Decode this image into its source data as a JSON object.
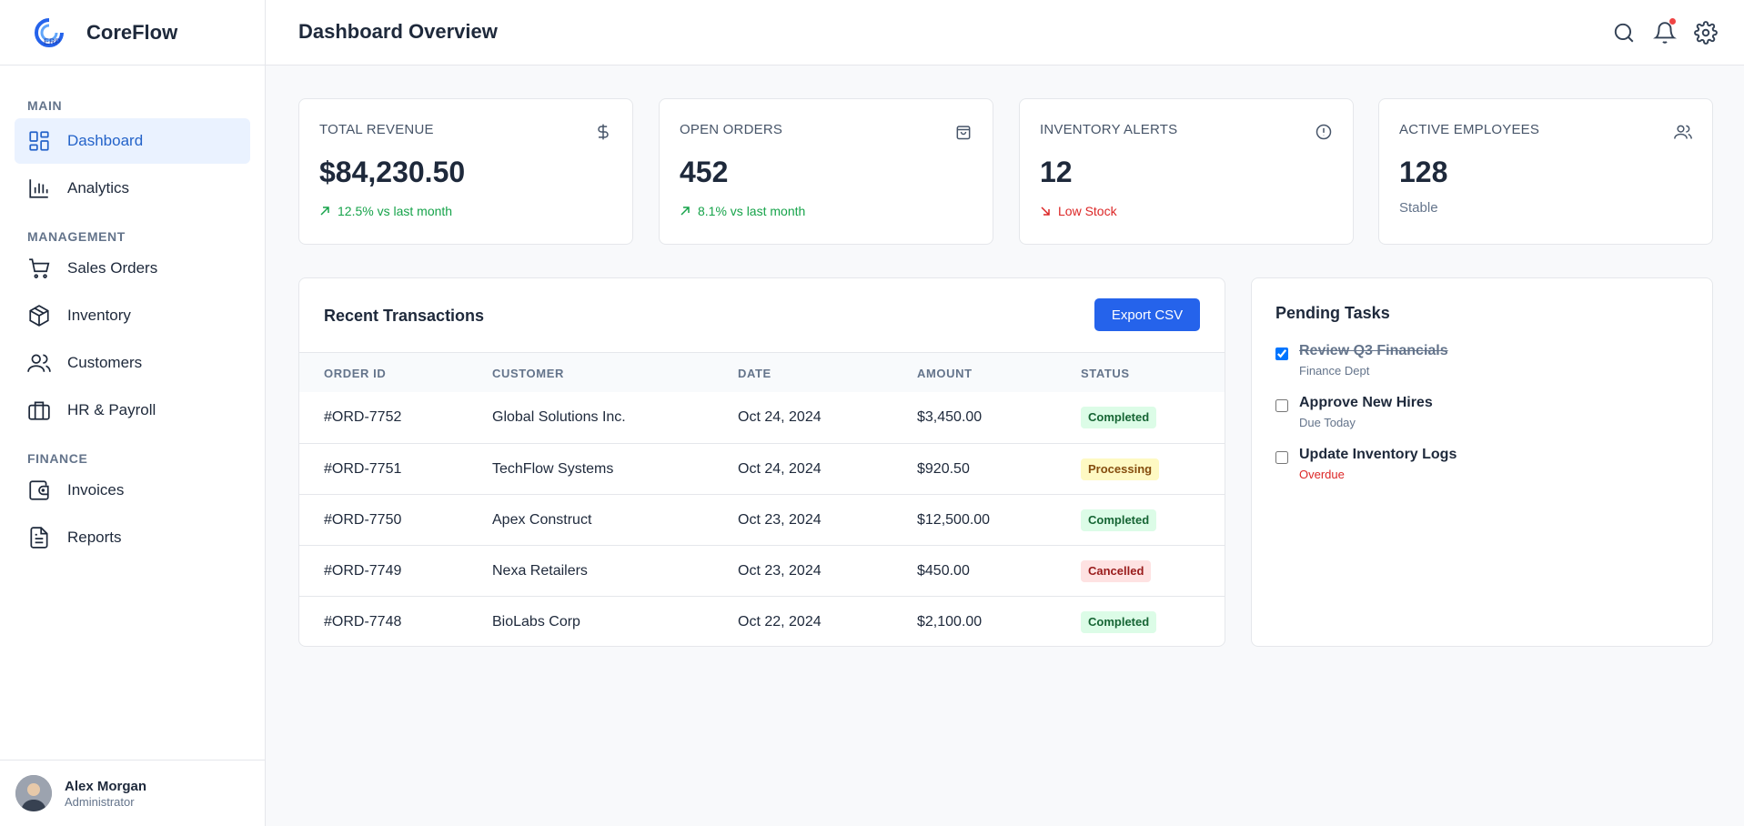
{
  "app": {
    "name": "CoreFlow",
    "logo_text": "ERP"
  },
  "sidebar": {
    "sections": [
      {
        "label": "MAIN",
        "items": [
          {
            "label": "Dashboard",
            "icon": "dashboard-icon"
          },
          {
            "label": "Analytics",
            "icon": "bar-chart-icon"
          }
        ]
      },
      {
        "label": "MANAGEMENT",
        "items": [
          {
            "label": "Sales Orders",
            "icon": "cart-icon"
          },
          {
            "label": "Inventory",
            "icon": "box-icon"
          },
          {
            "label": "Customers",
            "icon": "users-icon"
          },
          {
            "label": "HR & Payroll",
            "icon": "briefcase-icon"
          }
        ]
      },
      {
        "label": "FINANCE",
        "items": [
          {
            "label": "Invoices",
            "icon": "wallet-icon"
          },
          {
            "label": "Reports",
            "icon": "report-icon"
          }
        ]
      }
    ],
    "active_item": "Dashboard"
  },
  "user": {
    "name": "Alex Morgan",
    "role": "Administrator"
  },
  "header": {
    "title": "Dashboard Overview",
    "icons": [
      "search-icon",
      "bell-icon",
      "gear-icon"
    ]
  },
  "stats": [
    {
      "label": "TOTAL REVENUE",
      "value": "$84,230.50",
      "trend": "12.5% vs last month",
      "trend_dir": "up",
      "icon": "dollar-icon"
    },
    {
      "label": "OPEN ORDERS",
      "value": "452",
      "trend": "8.1% vs last month",
      "trend_dir": "up",
      "icon": "shopping-bag-icon"
    },
    {
      "label": "INVENTORY ALERTS",
      "value": "12",
      "trend": "Low Stock",
      "trend_dir": "down",
      "icon": "alert-icon"
    },
    {
      "label": "ACTIVE EMPLOYEES",
      "value": "128",
      "sub": "Stable",
      "icon": "users-icon"
    }
  ],
  "transactions": {
    "title": "Recent Transactions",
    "export_label": "Export CSV",
    "columns": [
      "ORDER ID",
      "CUSTOMER",
      "DATE",
      "AMOUNT",
      "STATUS"
    ],
    "rows": [
      {
        "id": "#ORD-7752",
        "customer": "Global Solutions Inc.",
        "date": "Oct 24, 2024",
        "amount": "$3,450.00",
        "status": "Completed"
      },
      {
        "id": "#ORD-7751",
        "customer": "TechFlow Systems",
        "date": "Oct 24, 2024",
        "amount": "$920.50",
        "status": "Processing"
      },
      {
        "id": "#ORD-7750",
        "customer": "Apex Construct",
        "date": "Oct 23, 2024",
        "amount": "$12,500.00",
        "status": "Completed"
      },
      {
        "id": "#ORD-7749",
        "customer": "Nexa Retailers",
        "date": "Oct 23, 2024",
        "amount": "$450.00",
        "status": "Cancelled"
      },
      {
        "id": "#ORD-7748",
        "customer": "BioLabs Corp",
        "date": "Oct 22, 2024",
        "amount": "$2,100.00",
        "status": "Completed"
      }
    ]
  },
  "tasks": {
    "title": "Pending Tasks",
    "items": [
      {
        "title": "Review Q3 Financials",
        "meta": "Finance Dept",
        "done": true
      },
      {
        "title": "Approve New Hires",
        "meta": "Due Today",
        "done": false
      },
      {
        "title": "Update Inventory Logs",
        "meta": "Overdue",
        "done": false,
        "overdue": true
      }
    ]
  },
  "colors": {
    "primary": "#2563eb",
    "success": "#16a34a",
    "danger": "#dc2626",
    "active_nav_bg": "#eaf2ff"
  }
}
